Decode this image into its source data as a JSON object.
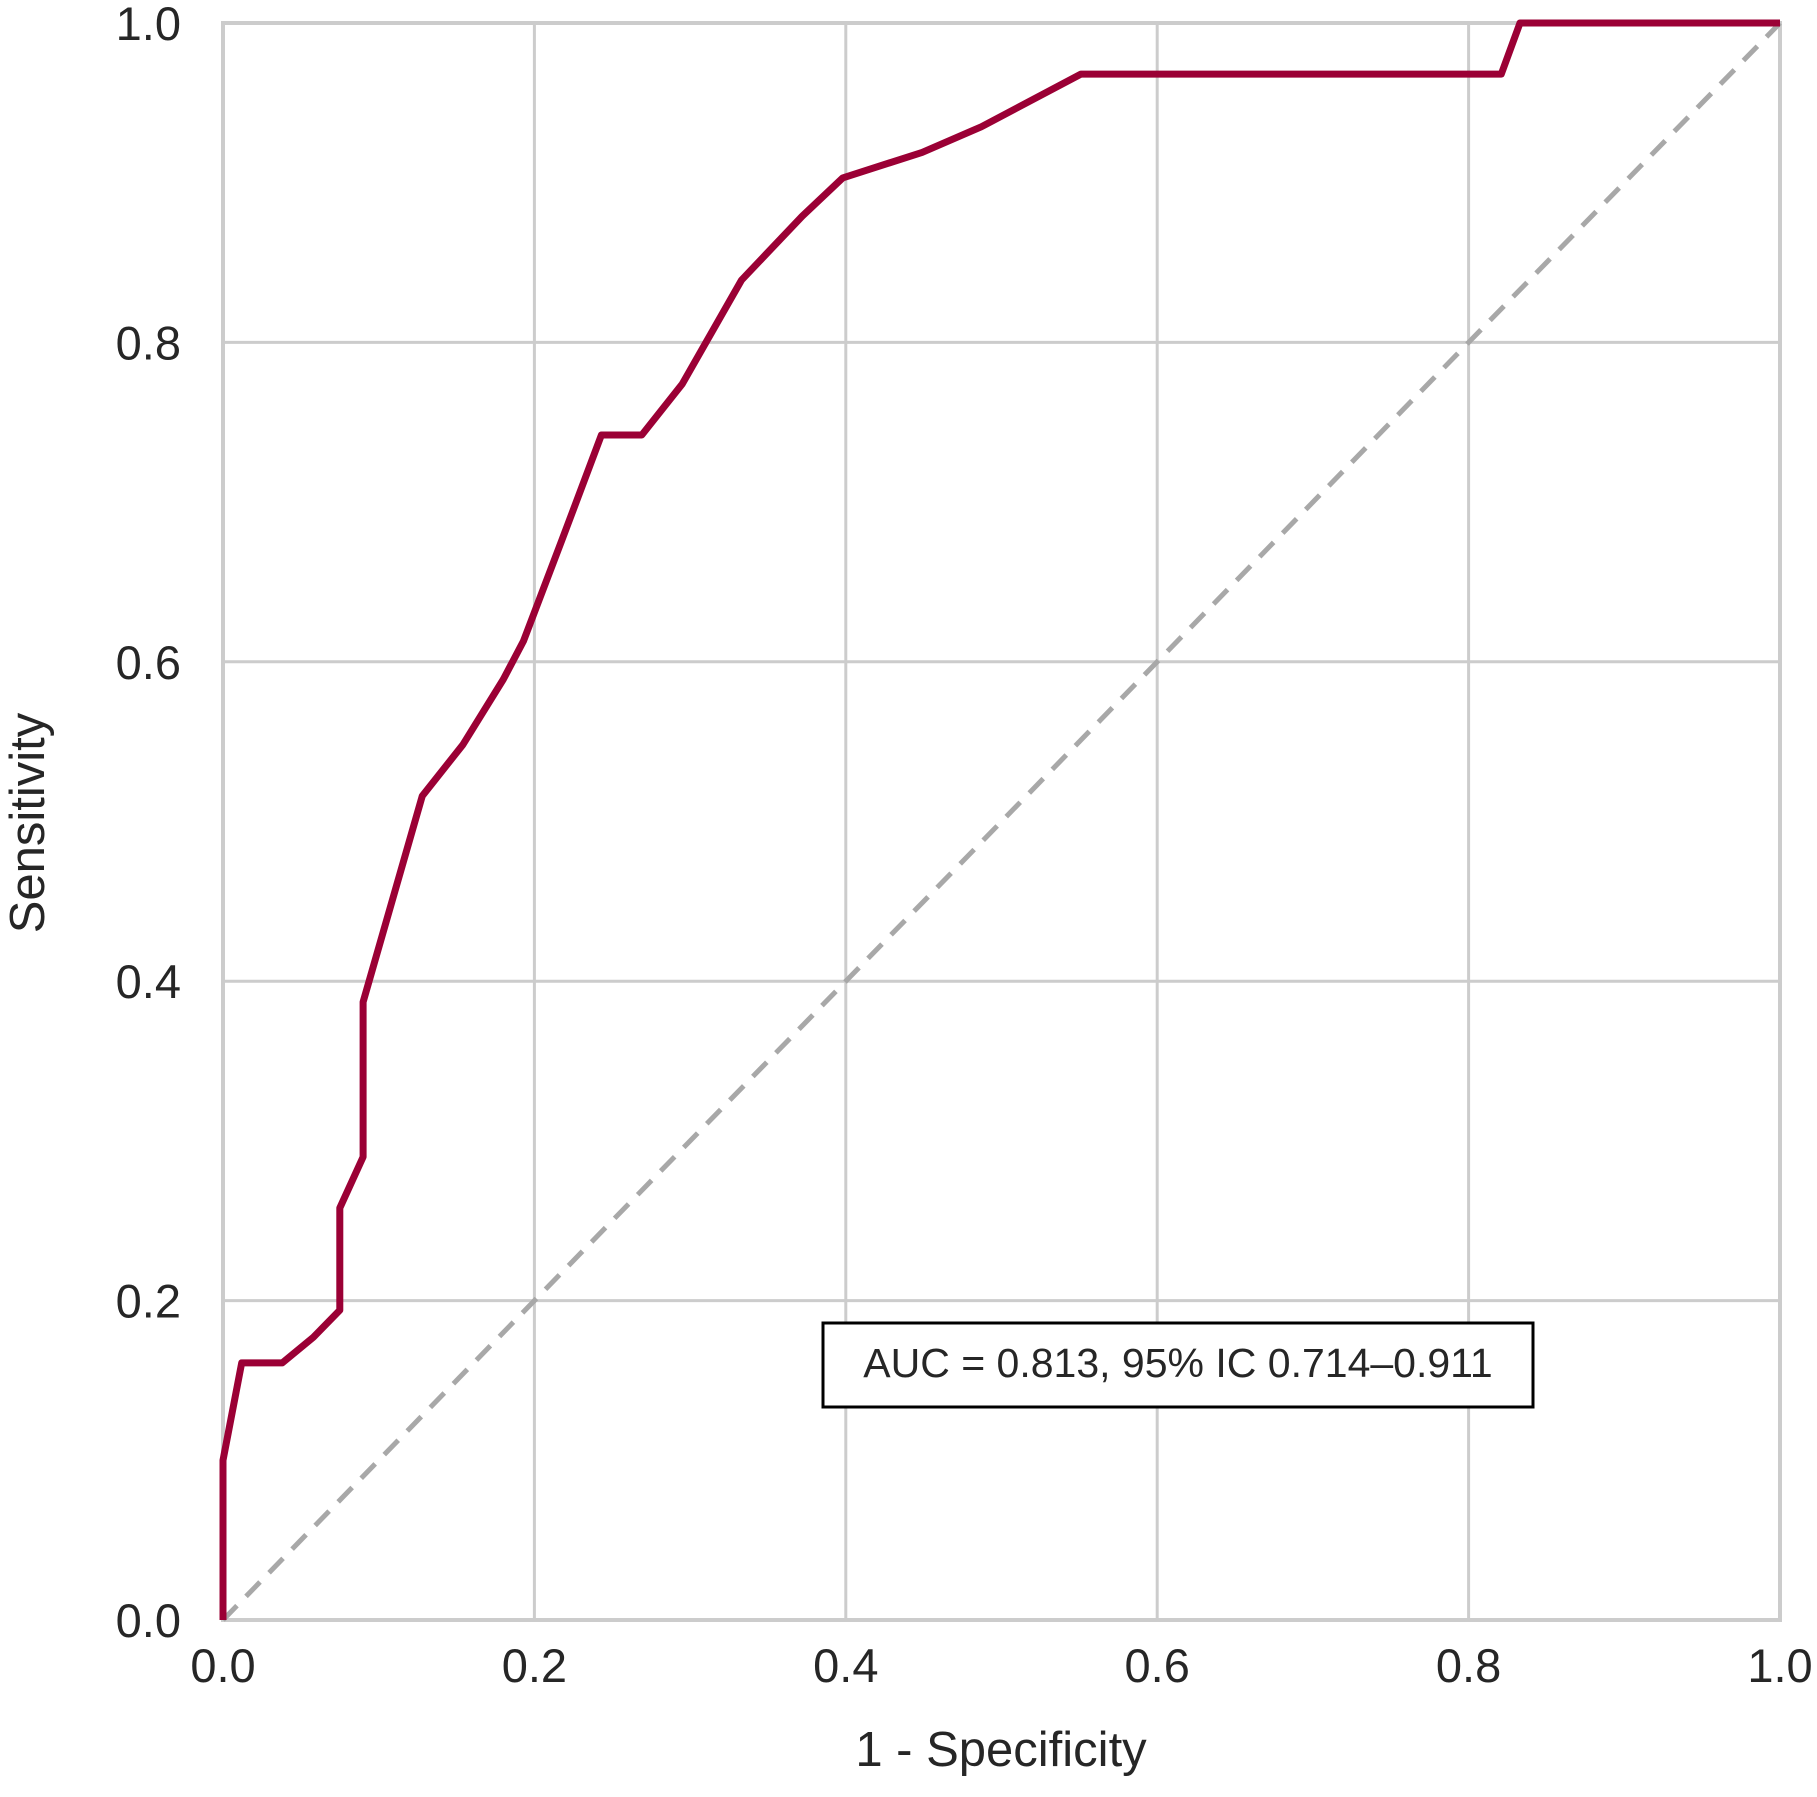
{
  "chart_data": {
    "type": "line",
    "title": "",
    "xlabel": "1 - Specificity",
    "ylabel": "Sensitivity",
    "xlim": [
      0.0,
      1.0
    ],
    "ylim": [
      0.0,
      1.0
    ],
    "x_ticks": [
      "0.0",
      "0.2",
      "0.4",
      "0.6",
      "0.8",
      "1.0"
    ],
    "y_ticks": [
      "0.0",
      "0.2",
      "0.4",
      "0.6",
      "0.8",
      "1.0"
    ],
    "grid": true,
    "annotation": "AUC = 0.813, 95% IC 0.714–0.911",
    "annotation_position": "lower-right",
    "series": [
      {
        "style": "solid",
        "color": "#9b0035",
        "x": [
          0.0,
          0.0,
          0.012,
          0.038,
          0.058,
          0.075,
          0.075,
          0.09,
          0.09,
          0.128,
          0.154,
          0.18,
          0.193,
          0.218,
          0.243,
          0.269,
          0.295,
          0.333,
          0.372,
          0.398,
          0.449,
          0.487,
          0.551,
          0.577,
          0.821,
          0.833,
          1.0
        ],
        "y": [
          0.0,
          0.1,
          0.161,
          0.161,
          0.177,
          0.194,
          0.258,
          0.29,
          0.387,
          0.516,
          0.548,
          0.589,
          0.613,
          0.677,
          0.742,
          0.742,
          0.774,
          0.839,
          0.879,
          0.903,
          0.919,
          0.935,
          0.968,
          0.968,
          0.968,
          1.0,
          1.0
        ]
      },
      {
        "style": "dashed",
        "color": "#a8a8a8",
        "x": [
          0.0,
          1.0
        ],
        "y": [
          0.0,
          1.0
        ]
      }
    ]
  },
  "colors": {
    "roc_line": "#9b0035",
    "reference_line": "#a8a8a8",
    "grid": "#cccccc",
    "text": "#262626"
  }
}
